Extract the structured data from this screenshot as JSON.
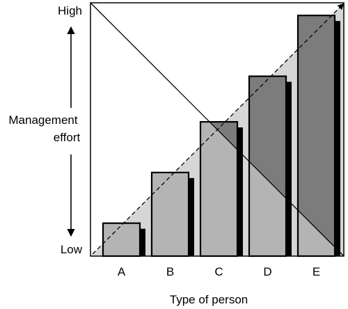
{
  "chart_data": {
    "type": "bar",
    "title": "",
    "xlabel": "Type of person",
    "ylabel": "Management effort",
    "ylabel_lines": [
      "Management",
      "effort"
    ],
    "y_high_label": "High",
    "y_low_label": "Low",
    "categories": [
      "A",
      "B",
      "C",
      "D",
      "E"
    ],
    "values": [
      13,
      33,
      53,
      71,
      95
    ],
    "ylim": [
      0,
      100
    ],
    "grid": false,
    "legend": "none",
    "colors": {
      "bar": "#b4b4b4",
      "bar_overlap": "#7c7c7c",
      "shadow": "#000000",
      "triangle": "#d6d6d6",
      "line": "#000000"
    }
  }
}
